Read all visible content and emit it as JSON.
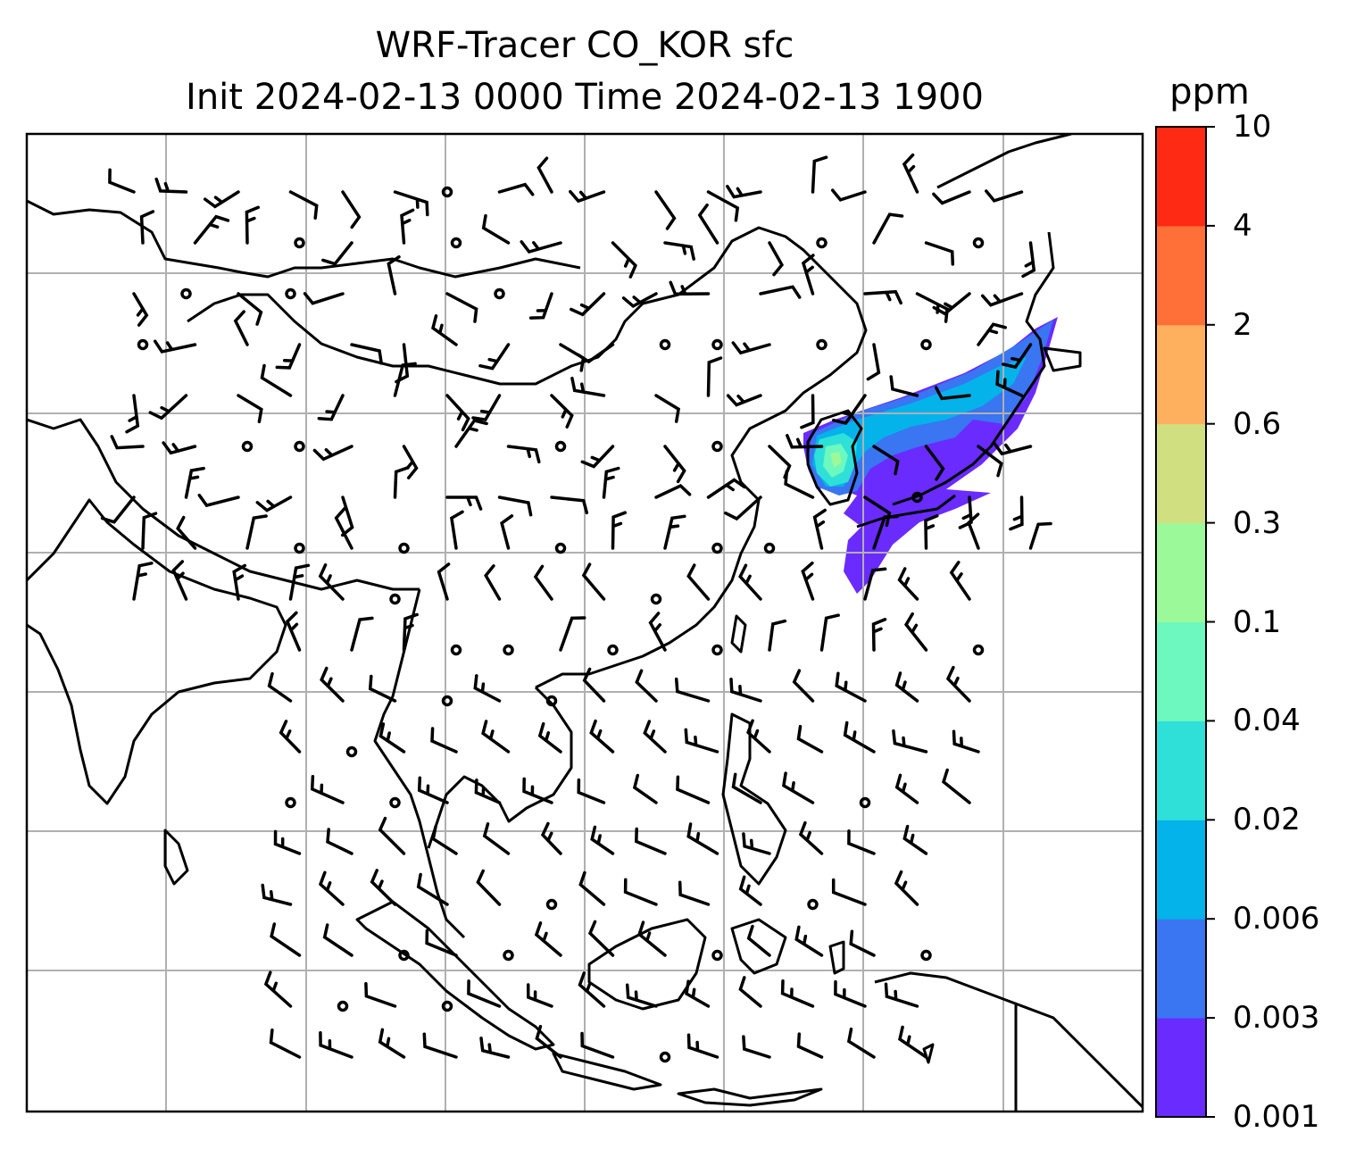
{
  "title_line1": "WRF-Tracer CO_KOR sfc",
  "title_line2": "Init 2024-02-13 0000 Time 2024-02-13 1900",
  "colorbar": {
    "unit": "ppm",
    "levels": [
      "0.001",
      "0.003",
      "0.006",
      "0.02",
      "0.04",
      "0.1",
      "0.3",
      "0.6",
      "2",
      "4",
      "10"
    ],
    "colors": [
      "#6a2bff",
      "#3a75f2",
      "#03b3ea",
      "#2ee0d8",
      "#6cf8bf",
      "#9cf99a",
      "#d0e080",
      "#ffb05e",
      "#ff7038",
      "#ff2a14"
    ]
  },
  "map": {
    "field": "CO_KOR surface tracer concentration",
    "wind": "surface wind barbs",
    "gridlines": true,
    "coastlines": true
  }
}
